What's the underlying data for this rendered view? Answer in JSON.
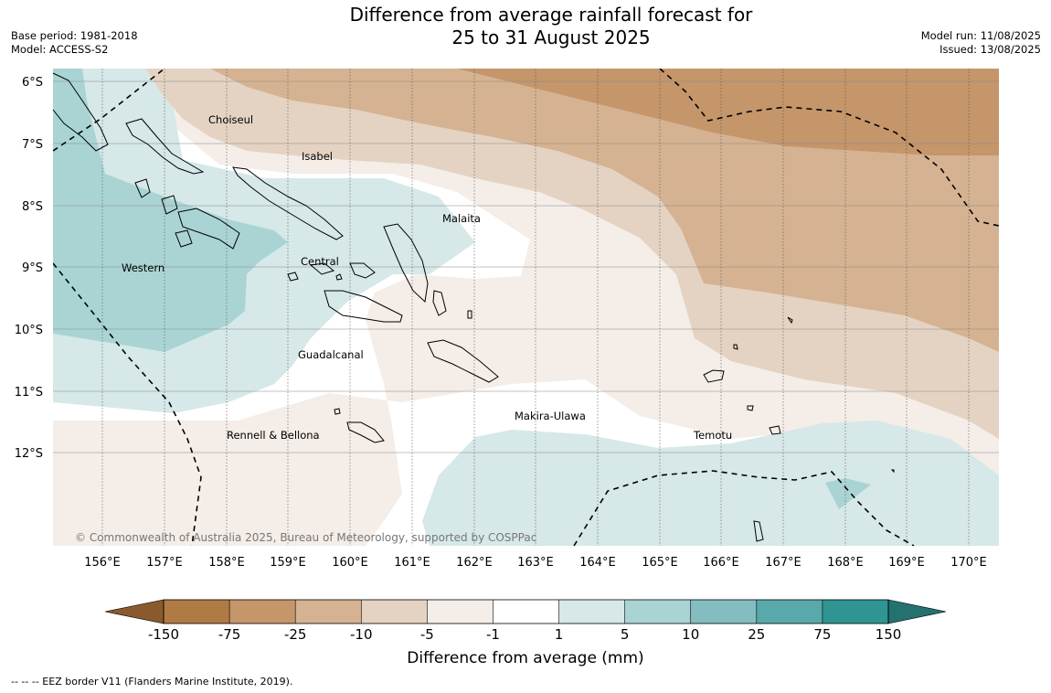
{
  "title": {
    "line1": "Difference from average rainfall forecast for",
    "line2": "25 to 31 August 2025"
  },
  "meta_left": {
    "base_period": "Base period: 1981-2018",
    "model": "Model: ACCESS-S2"
  },
  "meta_right": {
    "model_run": "Model run: 11/08/2025",
    "issued": "Issued: 13/08/2025"
  },
  "map": {
    "lat_labels": [
      "6°S",
      "7°S",
      "8°S",
      "9°S",
      "10°S",
      "11°S",
      "12°S"
    ],
    "lon_labels": [
      "156°E",
      "157°E",
      "158°E",
      "159°E",
      "160°E",
      "161°E",
      "162°E",
      "163°E",
      "164°E",
      "165°E",
      "166°E",
      "167°E",
      "168°E",
      "169°E",
      "170°E"
    ],
    "provinces": [
      "Choiseul",
      "Isabel",
      "Malaita",
      "Western",
      "Central",
      "Guadalcanal",
      "Makira-Ulawa",
      "Temotu",
      "Rennell & Bellona"
    ],
    "copyright": "© Commonwealth of Australia 2025, Bureau of Meteorology, supported by COSPPac"
  },
  "legend": {
    "colors": [
      "#b07a45",
      "#c4966a",
      "#d5b291",
      "#e4d3c2",
      "#f4ede8",
      "#ffffff",
      "#d6e8e8",
      "#aad4d4",
      "#84bdbf",
      "#5aa9aa",
      "#2f9593"
    ],
    "end_colors": [
      "#8a5a2e",
      "#24726f"
    ],
    "ticks": [
      "-150",
      "-75",
      "-25",
      "-10",
      "-5",
      "-1",
      "1",
      "5",
      "10",
      "25",
      "75",
      "150"
    ],
    "label": "Difference from average (mm)"
  },
  "footer_note": "-- -- -- EEZ border V11 (Flanders Marine Institute, 2019)."
}
